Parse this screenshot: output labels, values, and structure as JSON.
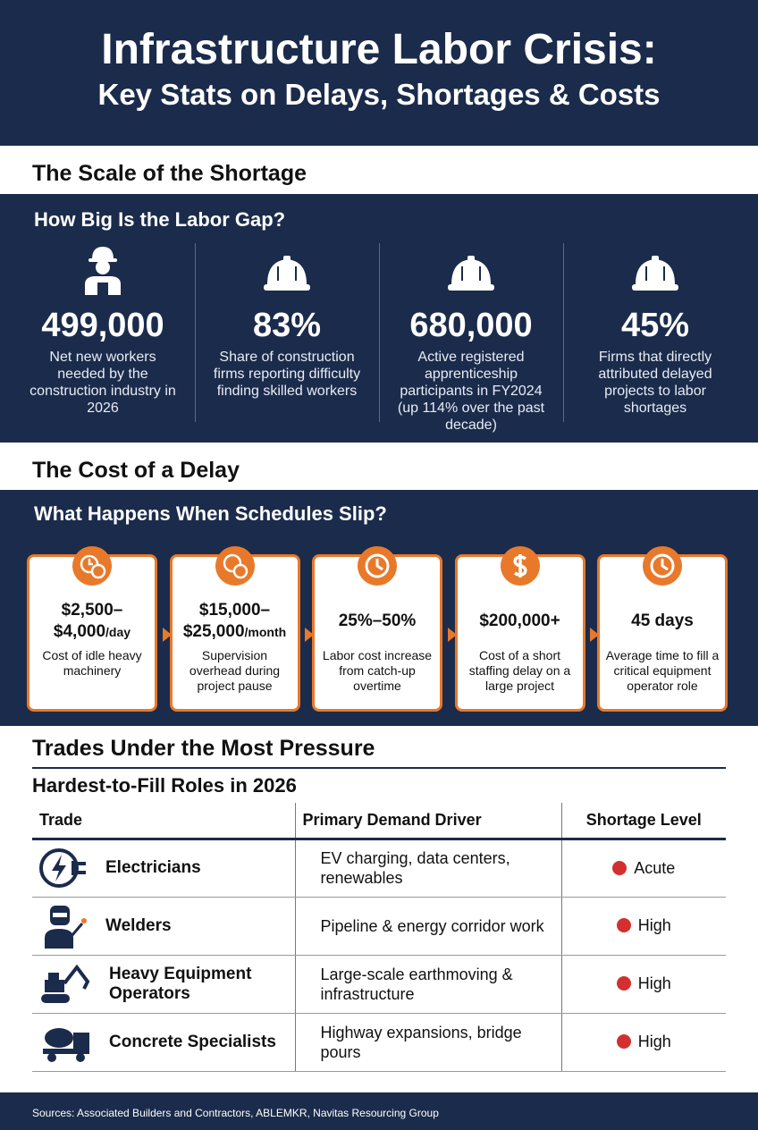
{
  "header": {
    "title": [
      "Infrastructure Labor Crisis:",
      "Key Stats on Delays, Shortages & Costs"
    ]
  },
  "shortage": {
    "heading": "The Scale of the Shortage",
    "subheading": "How Big Is the Labor Gap?",
    "stats": [
      {
        "value": "499,000",
        "label": "Net new workers needed by the construction industry in 2026"
      },
      {
        "value": "83%",
        "label": "Share of construction firms reporting difficulty finding skilled workers"
      },
      {
        "value": "680,000",
        "label": "Active registered apprenticeship participants in FY2024 (up 114% over the past decade)"
      },
      {
        "value": "45%",
        "label": "Firms that directly attributed delayed projects to labor shortages"
      }
    ]
  },
  "delay": {
    "heading": "The Cost of a Delay",
    "subheading": "What Happens When Schedules Slip?",
    "cards": [
      {
        "value": "$2,500–$4,000",
        "unit": "/day",
        "label": "Cost of idle heavy machinery"
      },
      {
        "value": "$15,000–$25,000",
        "unit": "/month",
        "label": "Supervision overhead during project pause"
      },
      {
        "value": "25%–50%",
        "label": "Labor cost increase from catch-up overtime"
      },
      {
        "value": "$200,000+",
        "label": "Cost of a short staffing delay on a large project"
      },
      {
        "value": "45 days",
        "label": "Average time to fill a critical equipment operator role"
      }
    ]
  },
  "trades": {
    "heading": "Trades Under the Most Pressure",
    "subheading": "Hardest-to-Fill Roles in 2026",
    "table": {
      "headers": [
        "Trade",
        "Primary Demand Driver",
        "Shortage Level"
      ],
      "rows": [
        [
          "Electricians",
          "EV charging, data centers, renewables",
          "Acute"
        ],
        [
          "Welders",
          "Pipeline & energy corridor work",
          "High"
        ],
        [
          "Heavy Equipment Operators",
          "Large-scale earthmoving & infrastructure",
          "High"
        ],
        [
          "Concrete Specialists",
          "Highway expansions, bridge pours",
          "High"
        ]
      ]
    }
  },
  "footer": {
    "sources": "Sources: Associated Builders and Contractors, ABLEMKR, Navitas Resourcing Group"
  }
}
